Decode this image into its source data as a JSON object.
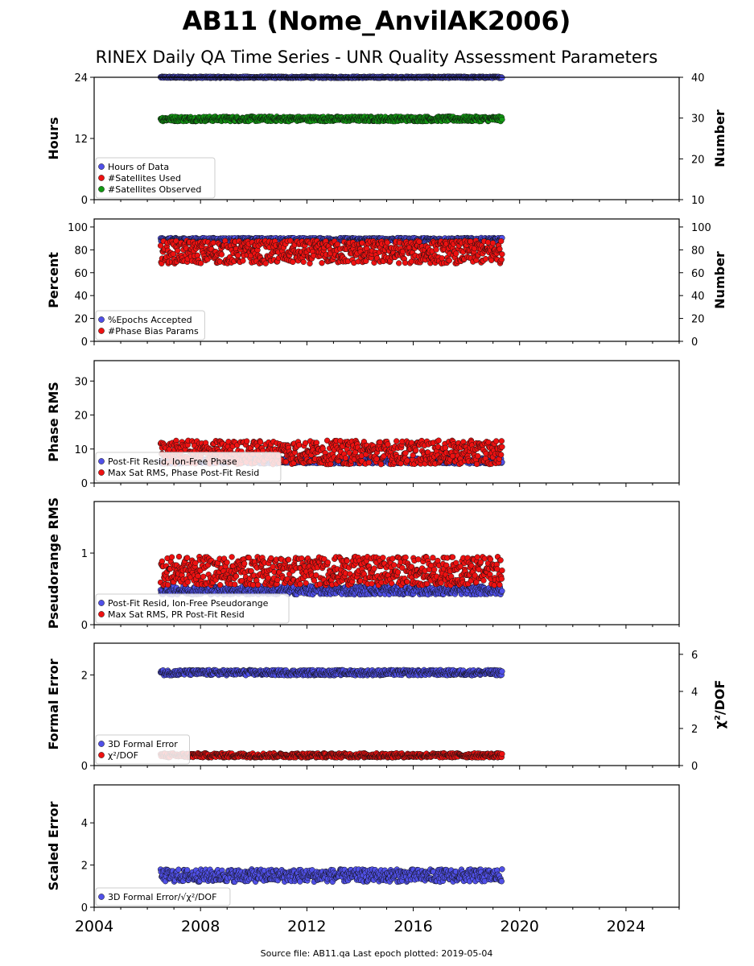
{
  "title": "AB11 (Nome_AnvilAK2006)",
  "subtitle": "RINEX Daily QA Time Series - UNR Quality Assessment Parameters",
  "footer": "Source file: AB11.qa Last epoch plotted: 2019-05-04",
  "colors": {
    "blue": "#5050e8",
    "red": "#ee1111",
    "green": "#119911"
  },
  "chart_data": [
    {
      "type": "scatter",
      "ylabel": "Hours",
      "ylabel_right": "Number",
      "xlim": [
        2004,
        2026
      ],
      "ylim": [
        0,
        24
      ],
      "ylim_right": [
        10,
        40
      ],
      "yticks": [
        "0",
        "12",
        "24"
      ],
      "yticks_right": [
        "10",
        "20",
        "30",
        "40"
      ],
      "legend": [
        "Hours of Data",
        "#Satellites Used",
        "#Satellites Observed"
      ],
      "legend_position": "lower-left",
      "series": [
        {
          "name": "Hours of Data",
          "axis": "left",
          "color": "blue",
          "x_range": [
            2006.5,
            2019.34
          ],
          "center": 24,
          "spread": 0.15
        },
        {
          "name": "#Satellites Used",
          "axis": "right",
          "color": "red",
          "x_range": [
            2009.0,
            2009.1
          ],
          "center": 30,
          "spread": 0.3
        },
        {
          "name": "#Satellites Observed",
          "axis": "right",
          "color": "green",
          "x_range": [
            2006.5,
            2019.34
          ],
          "center": 29.8,
          "spread": 0.6
        }
      ]
    },
    {
      "type": "scatter",
      "ylabel": "Percent",
      "ylabel_right": "Number",
      "xlim": [
        2004,
        2026
      ],
      "ylim": [
        0,
        107
      ],
      "ylim_right": [
        0,
        107
      ],
      "yticks": [
        "0",
        "20",
        "40",
        "60",
        "80",
        "100"
      ],
      "yticks_right": [
        "0",
        "20",
        "40",
        "60",
        "80",
        "100"
      ],
      "legend": [
        "%Epochs Accepted",
        "#Phase Bias Params"
      ],
      "legend_position": "lower-left",
      "series": [
        {
          "name": "%Epochs Accepted",
          "axis": "left",
          "color": "blue",
          "x_range": [
            2006.5,
            2019.34
          ],
          "center": 89,
          "spread": 1.5
        },
        {
          "name": "#Phase Bias Params",
          "axis": "right",
          "color": "red",
          "x_range": [
            2006.5,
            2019.34
          ],
          "center": 78,
          "spread": 10
        }
      ]
    },
    {
      "type": "scatter",
      "ylabel": "Phase RMS",
      "xlim": [
        2004,
        2026
      ],
      "ylim": [
        0,
        36
      ],
      "yticks": [
        "0",
        "10",
        "20",
        "30"
      ],
      "legend": [
        "Post-Fit Resid, Ion-Free Phase",
        "Max Sat RMS, Phase Post-Fit Resid"
      ],
      "legend_position": "lower-left",
      "series": [
        {
          "name": "Post-Fit Resid, Ion-Free Phase",
          "axis": "left",
          "color": "blue",
          "x_range": [
            2006.5,
            2019.34
          ],
          "center": 6.5,
          "spread": 0.8
        },
        {
          "name": "Max Sat RMS, Phase Post-Fit Resid",
          "axis": "left",
          "color": "red",
          "x_range": [
            2006.5,
            2019.34
          ],
          "center": 9,
          "spread": 3.5
        }
      ]
    },
    {
      "type": "scatter",
      "ylabel": "Pseudorange RMS",
      "xlim": [
        2004,
        2026
      ],
      "ylim": [
        0,
        1.72
      ],
      "yticks": [
        "0",
        "1"
      ],
      "legend": [
        "Post-Fit Resid, Ion-Free Pseudorange",
        "Max Sat RMS, PR Post-Fit Resid"
      ],
      "legend_position": "lower-left",
      "series": [
        {
          "name": "Post-Fit Resid, Ion-Free Pseudorange",
          "axis": "left",
          "color": "blue",
          "x_range": [
            2006.5,
            2019.34
          ],
          "center": 0.48,
          "spread": 0.06
        },
        {
          "name": "Max Sat RMS, PR Post-Fit Resid",
          "axis": "left",
          "color": "red",
          "x_range": [
            2006.5,
            2019.34
          ],
          "center": 0.75,
          "spread": 0.2
        }
      ]
    },
    {
      "type": "scatter",
      "ylabel": "Formal Error",
      "ylabel_right": "χ²/DOF",
      "xlim": [
        2004,
        2026
      ],
      "ylim": [
        0,
        2.7
      ],
      "ylim_right": [
        0,
        6.6
      ],
      "yticks": [
        "0",
        "2"
      ],
      "yticks_right": [
        "0",
        "2",
        "4",
        "6"
      ],
      "legend": [
        "3D Formal Error",
        "χ²/DOF"
      ],
      "legend_position": "lower-left",
      "series": [
        {
          "name": "3D Formal Error",
          "axis": "left",
          "color": "blue",
          "x_range": [
            2006.5,
            2019.34
          ],
          "center": 2.05,
          "spread": 0.06
        },
        {
          "name": "χ²/DOF",
          "axis": "right",
          "color": "red",
          "x_range": [
            2006.5,
            2019.34
          ],
          "center": 0.55,
          "spread": 0.12
        }
      ]
    },
    {
      "type": "scatter",
      "ylabel": "Scaled Error",
      "xlim": [
        2004,
        2026
      ],
      "ylim": [
        0,
        5.8
      ],
      "yticks": [
        "0",
        "2",
        "4"
      ],
      "xticks": [
        "2004",
        "2008",
        "2012",
        "2016",
        "2020",
        "2024"
      ],
      "legend": [
        "3D Formal Error/√χ²/DOF"
      ],
      "legend_position": "lower-left",
      "series": [
        {
          "name": "3D Formal Error/√χ²/DOF",
          "axis": "left",
          "color": "blue",
          "x_range": [
            2006.5,
            2019.34
          ],
          "center": 1.5,
          "spread": 0.3
        }
      ]
    }
  ]
}
